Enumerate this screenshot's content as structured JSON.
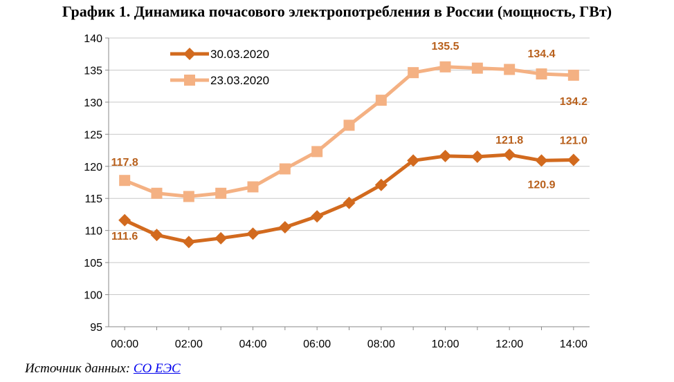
{
  "title": "График 1. Динамика почасового электропотребления в России (мощность, ГВт)",
  "source": {
    "label": "Источник данных:",
    "link": "СО ЕЭС"
  },
  "colors": {
    "series1": "#d26a1e",
    "series2": "#f4b183",
    "label": "#b8601c",
    "grid": "#c8c8c8"
  },
  "chart_data": {
    "type": "line",
    "xlabel": "",
    "ylabel": "",
    "ylim": [
      95,
      140
    ],
    "yticks": [
      95,
      100,
      105,
      110,
      115,
      120,
      125,
      130,
      135,
      140
    ],
    "x": [
      "00:00",
      "01:00",
      "02:00",
      "03:00",
      "04:00",
      "05:00",
      "06:00",
      "07:00",
      "08:00",
      "09:00",
      "10:00",
      "11:00",
      "12:00",
      "13:00",
      "14:00"
    ],
    "xtick_labels": [
      "00:00",
      "02:00",
      "04:00",
      "06:00",
      "08:00",
      "10:00",
      "12:00",
      "14:00"
    ],
    "grid": true,
    "legend": "top-left",
    "series": [
      {
        "name": "30.03.2020",
        "marker": "diamond",
        "values": [
          111.6,
          109.3,
          108.2,
          108.8,
          109.5,
          110.5,
          112.2,
          114.3,
          117.1,
          120.9,
          121.6,
          121.5,
          121.8,
          120.9,
          121.0
        ]
      },
      {
        "name": "23.03.2020",
        "marker": "square",
        "values": [
          117.8,
          115.8,
          115.3,
          115.8,
          116.8,
          119.6,
          122.3,
          126.4,
          130.3,
          134.6,
          135.5,
          135.3,
          135.1,
          134.4,
          134.2
        ]
      }
    ],
    "annotations": [
      {
        "series": 0,
        "index": 0,
        "text": "111.6"
      },
      {
        "series": 0,
        "index": 12,
        "text": "121.8"
      },
      {
        "series": 0,
        "index": 13,
        "text": "120.9"
      },
      {
        "series": 0,
        "index": 14,
        "text": "121.0"
      },
      {
        "series": 1,
        "index": 0,
        "text": "117.8"
      },
      {
        "series": 1,
        "index": 10,
        "text": "135.5"
      },
      {
        "series": 1,
        "index": 13,
        "text": "134.4"
      },
      {
        "series": 1,
        "index": 14,
        "text": "134.2"
      }
    ]
  }
}
